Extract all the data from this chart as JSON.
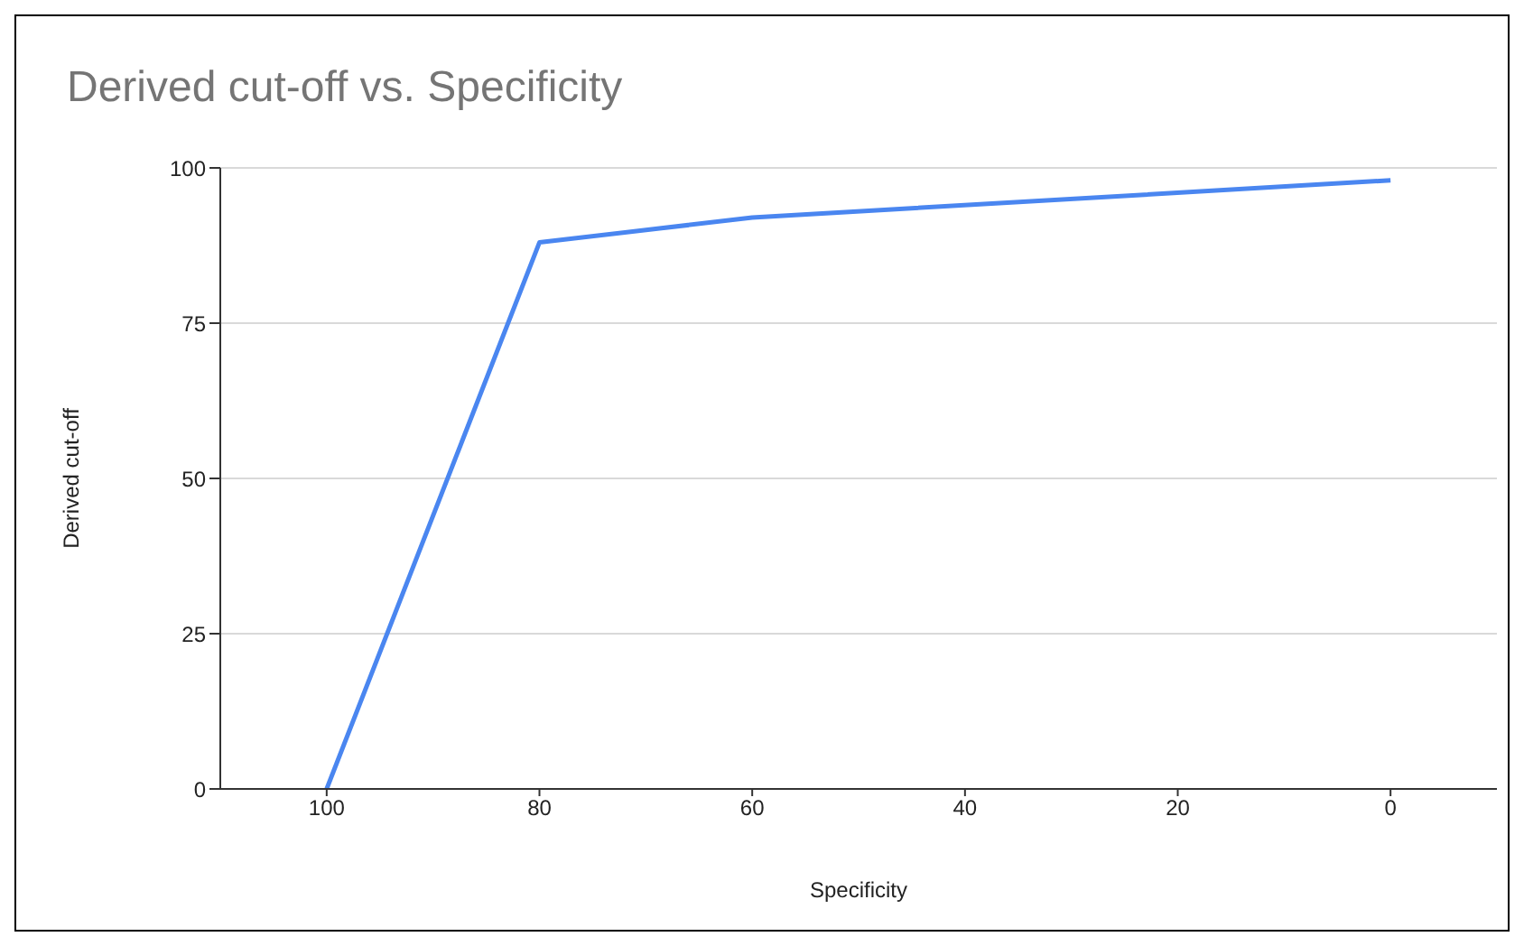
{
  "chart_data": {
    "type": "line",
    "title": "Derived cut-off vs. Specificity",
    "xlabel": "Specificity",
    "ylabel": "Derived cut-off",
    "x": [
      100,
      80,
      60,
      0
    ],
    "series": [
      {
        "color": "#4a86f0",
        "values": [
          0,
          88,
          92,
          98
        ]
      }
    ],
    "xlim": [
      110,
      -10
    ],
    "xticks": [
      100,
      80,
      60,
      40,
      20,
      0
    ],
    "ylim": [
      0,
      100
    ],
    "yticks": [
      0,
      25,
      50,
      75,
      100
    ],
    "grid": "y",
    "legend": false,
    "marker": "none",
    "line_style": "solid"
  }
}
